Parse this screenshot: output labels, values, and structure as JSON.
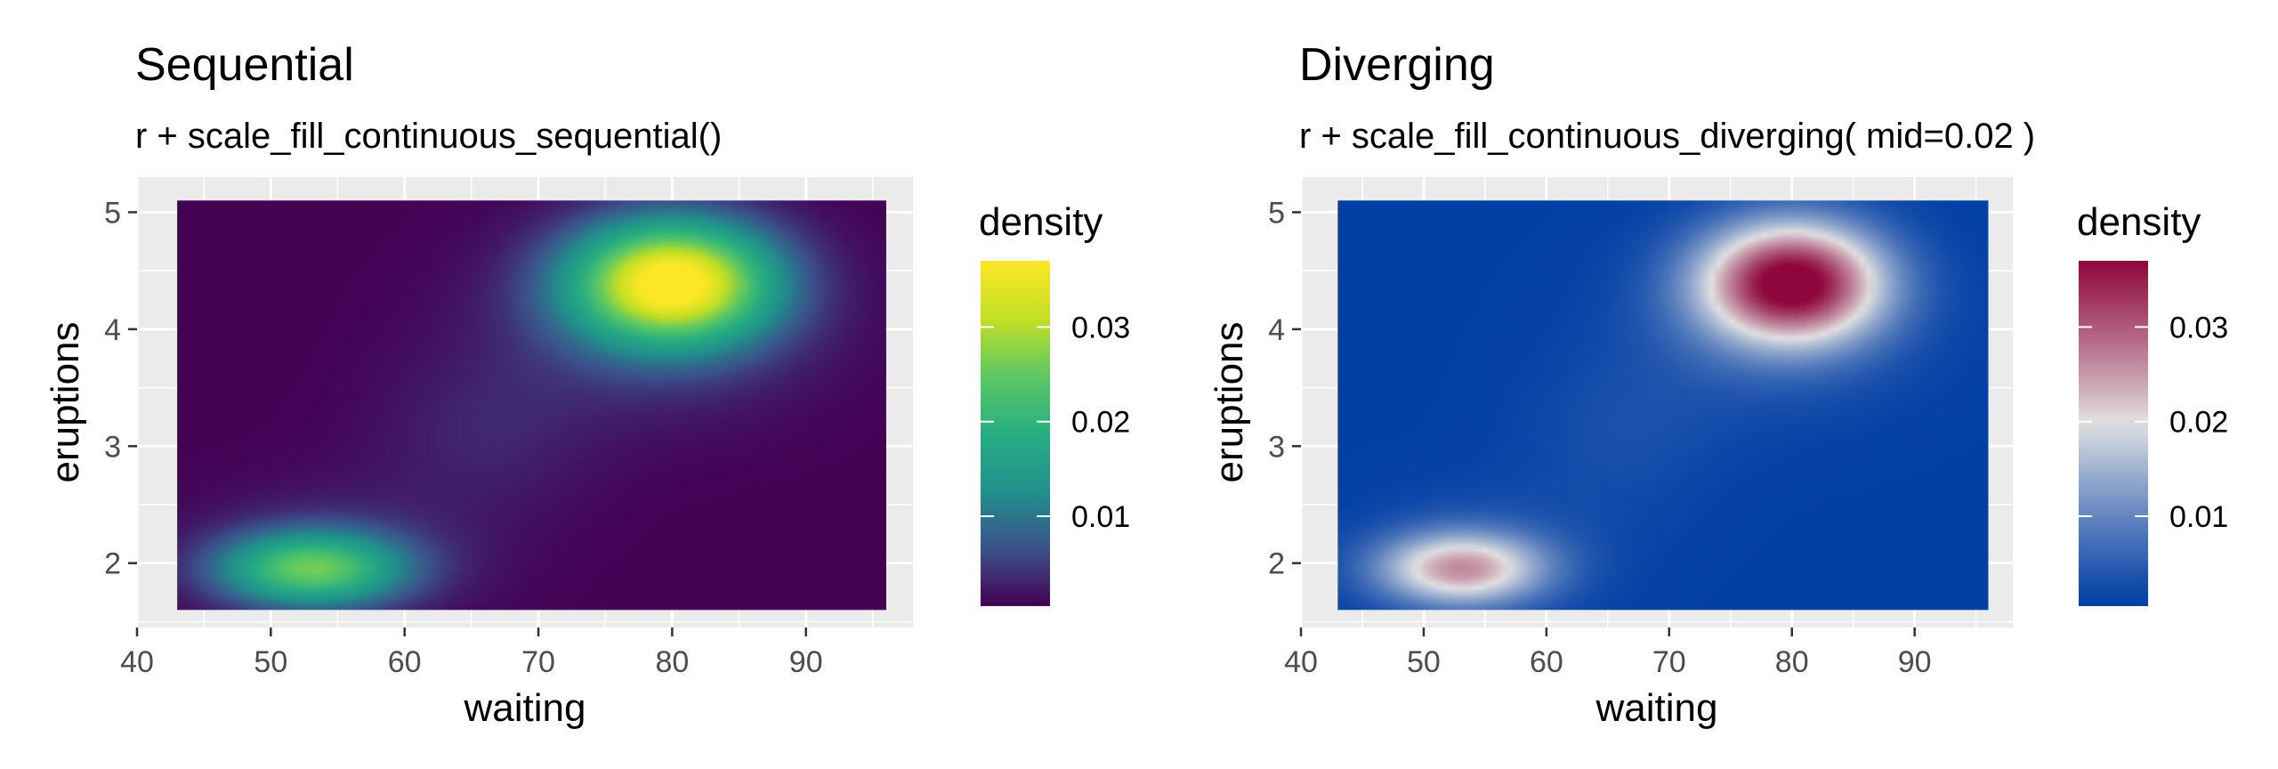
{
  "chart_data": [
    {
      "type": "heatmap",
      "title": "Sequential",
      "subtitle": "r + scale_fill_continuous_sequential()",
      "xlabel": "waiting",
      "ylabel": "eruptions",
      "xlim": [
        40,
        98
      ],
      "ylim": [
        1.45,
        5.3
      ],
      "data_extent": {
        "x": [
          43,
          96
        ],
        "y": [
          1.6,
          5.1
        ]
      },
      "x_ticks": [
        40,
        50,
        60,
        70,
        80,
        90
      ],
      "y_ticks": [
        2,
        3,
        4,
        5
      ],
      "grid": true,
      "legend": {
        "title": "density",
        "position": "right",
        "range": [
          0.0005,
          0.037
        ],
        "ticks": [
          0.01,
          0.02,
          0.03
        ],
        "tick_labels": [
          "0.01",
          "0.02",
          "0.03"
        ]
      },
      "colors": {
        "palette": [
          "#440154",
          "#3b528b",
          "#21908c",
          "#27ad81",
          "#5dc863",
          "#c2df23",
          "#fde725"
        ],
        "panel_background": "#ebebeb",
        "grid": "#ffffff"
      },
      "density_peaks": [
        {
          "x": 80,
          "y": 4.4,
          "density": 0.037
        },
        {
          "x": 53,
          "y": 1.95,
          "density": 0.023
        }
      ]
    },
    {
      "type": "heatmap",
      "title": "Diverging",
      "subtitle": "r + scale_fill_continuous_diverging( mid=0.02 )",
      "xlabel": "waiting",
      "ylabel": "eruptions",
      "xlim": [
        40,
        98
      ],
      "ylim": [
        1.45,
        5.3
      ],
      "data_extent": {
        "x": [
          43,
          96
        ],
        "y": [
          1.6,
          5.1
        ]
      },
      "x_ticks": [
        40,
        50,
        60,
        70,
        80,
        90
      ],
      "y_ticks": [
        2,
        3,
        4,
        5
      ],
      "grid": true,
      "legend": {
        "title": "density",
        "position": "right",
        "range": [
          0.0005,
          0.037
        ],
        "ticks": [
          0.01,
          0.02,
          0.03
        ],
        "tick_labels": [
          "0.01",
          "0.02",
          "0.03"
        ],
        "midpoint": 0.02
      },
      "colors": {
        "low": "#023fa5",
        "mid": "#e2e2e2",
        "high": "#8e063b",
        "panel_background": "#ebebeb",
        "grid": "#ffffff"
      },
      "density_peaks": [
        {
          "x": 80,
          "y": 4.4,
          "density": 0.037
        },
        {
          "x": 53,
          "y": 1.95,
          "density": 0.023
        }
      ]
    }
  ]
}
